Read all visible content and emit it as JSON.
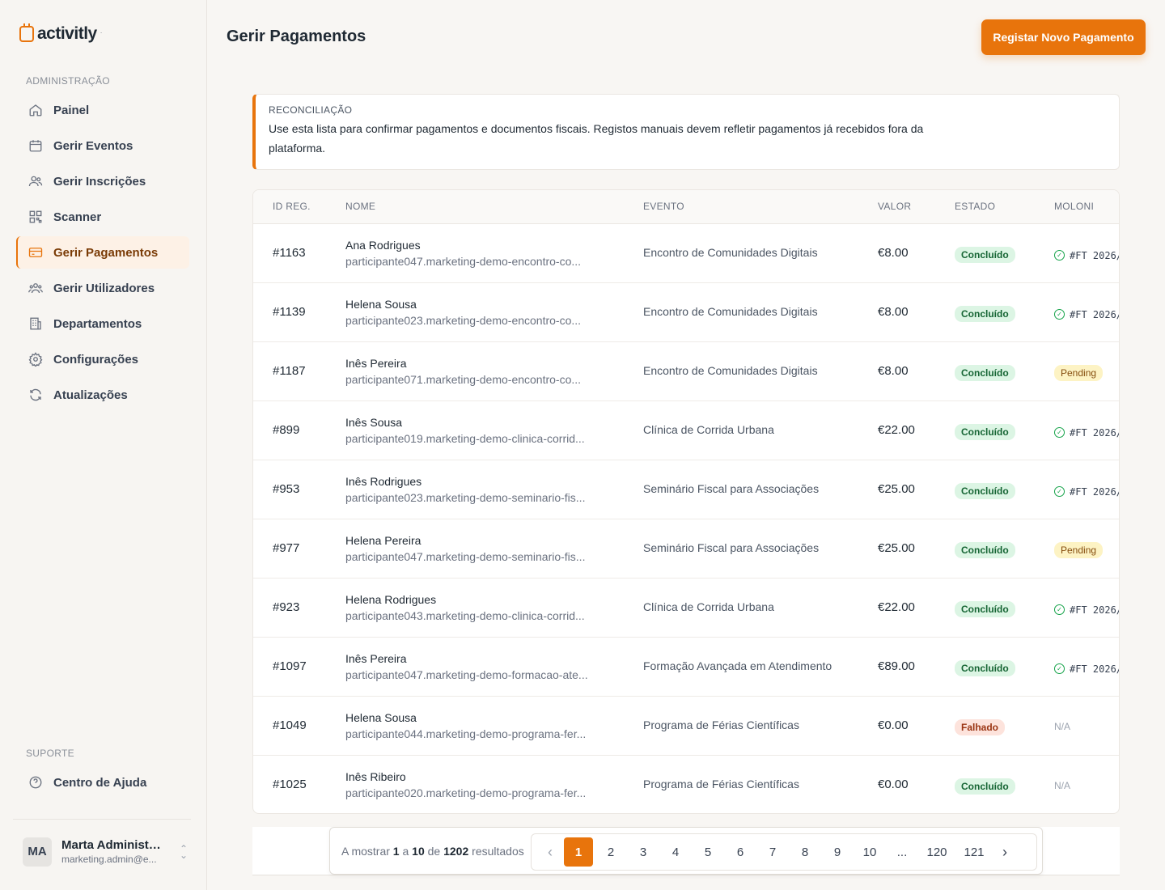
{
  "app": {
    "logo_text": "activitly",
    "logo_tm": "·"
  },
  "sidebar": {
    "section_admin": "ADMINISTRAÇÃO",
    "section_support": "SUPORTE",
    "items": [
      {
        "label": "Painel",
        "icon": "home-icon"
      },
      {
        "label": "Gerir Eventos",
        "icon": "calendar-icon"
      },
      {
        "label": "Gerir Inscrições",
        "icon": "users-icon"
      },
      {
        "label": "Scanner",
        "icon": "qr-icon"
      },
      {
        "label": "Gerir Pagamentos",
        "icon": "card-icon",
        "active": true
      },
      {
        "label": "Gerir Utilizadores",
        "icon": "user-group-icon"
      },
      {
        "label": "Departamentos",
        "icon": "building-icon"
      },
      {
        "label": "Configurações",
        "icon": "gear-icon"
      },
      {
        "label": "Atualizações",
        "icon": "refresh-icon"
      }
    ],
    "support_items": [
      {
        "label": "Centro de Ajuda",
        "icon": "help-icon"
      }
    ],
    "user": {
      "initials": "MA",
      "name": "Marta Administr...",
      "email": "marketing.admin@e..."
    }
  },
  "header": {
    "title": "Gerir Pagamentos",
    "primary_button": "Registar Novo Pagamento"
  },
  "notice": {
    "title": "RECONCILIAÇÃO",
    "text": "Use esta lista para confirmar pagamentos e documentos fiscais. Registos manuais devem refletir pagamentos já recebidos fora da plataforma."
  },
  "table": {
    "columns": [
      "ID REG.",
      "NOME",
      "EVENTO",
      "VALOR",
      "ESTADO",
      "MOLONI"
    ],
    "rows": [
      {
        "id": "#1163",
        "name": "Ana Rodrigues",
        "email": "participante047.marketing-demo-encontro-co...",
        "event": "Encontro de Comunidades Digitais",
        "value": "€8.00",
        "status": "Concluído",
        "status_kind": "ok",
        "moloni": "#FT 2026/",
        "moloni_kind": "ok"
      },
      {
        "id": "#1139",
        "name": "Helena Sousa",
        "email": "participante023.marketing-demo-encontro-co...",
        "event": "Encontro de Comunidades Digitais",
        "value": "€8.00",
        "status": "Concluído",
        "status_kind": "ok",
        "moloni": "#FT 2026/",
        "moloni_kind": "ok"
      },
      {
        "id": "#1187",
        "name": "Inês Pereira",
        "email": "participante071.marketing-demo-encontro-co...",
        "event": "Encontro de Comunidades Digitais",
        "value": "€8.00",
        "status": "Concluído",
        "status_kind": "ok",
        "moloni": "Pending",
        "moloni_kind": "pending"
      },
      {
        "id": "#899",
        "name": "Inês Sousa",
        "email": "participante019.marketing-demo-clinica-corrid...",
        "event": "Clínica de Corrida Urbana",
        "value": "€22.00",
        "status": "Concluído",
        "status_kind": "ok",
        "moloni": "#FT 2026/",
        "moloni_kind": "ok"
      },
      {
        "id": "#953",
        "name": "Inês Rodrigues",
        "email": "participante023.marketing-demo-seminario-fis...",
        "event": "Seminário Fiscal para Associações",
        "value": "€25.00",
        "status": "Concluído",
        "status_kind": "ok",
        "moloni": "#FT 2026/",
        "moloni_kind": "ok"
      },
      {
        "id": "#977",
        "name": "Helena Pereira",
        "email": "participante047.marketing-demo-seminario-fis...",
        "event": "Seminário Fiscal para Associações",
        "value": "€25.00",
        "status": "Concluído",
        "status_kind": "ok",
        "moloni": "Pending",
        "moloni_kind": "pending"
      },
      {
        "id": "#923",
        "name": "Helena Rodrigues",
        "email": "participante043.marketing-demo-clinica-corrid...",
        "event": "Clínica de Corrida Urbana",
        "value": "€22.00",
        "status": "Concluído",
        "status_kind": "ok",
        "moloni": "#FT 2026/",
        "moloni_kind": "ok"
      },
      {
        "id": "#1097",
        "name": "Inês Pereira",
        "email": "participante047.marketing-demo-formacao-ate...",
        "event": "Formação Avançada em Atendimento",
        "value": "€89.00",
        "status": "Concluído",
        "status_kind": "ok",
        "moloni": "#FT 2026/",
        "moloni_kind": "ok"
      },
      {
        "id": "#1049",
        "name": "Helena Sousa",
        "email": "participante044.marketing-demo-programa-fer...",
        "event": "Programa de Férias Científicas",
        "value": "€0.00",
        "status": "Falhado",
        "status_kind": "fail",
        "moloni": "N/A",
        "moloni_kind": "na"
      },
      {
        "id": "#1025",
        "name": "Inês Ribeiro",
        "email": "participante020.marketing-demo-programa-fer...",
        "event": "Programa de Férias Científicas",
        "value": "€0.00",
        "status": "Concluído",
        "status_kind": "ok",
        "moloni": "N/A",
        "moloni_kind": "na"
      }
    ]
  },
  "pagination": {
    "prefix": "A mostrar",
    "from": "1",
    "sep_a": "a",
    "to": "10",
    "sep_de": "de",
    "total": "1202",
    "suffix": "resultados",
    "pages": [
      "1",
      "2",
      "3",
      "4",
      "5",
      "6",
      "7",
      "8",
      "9",
      "10",
      "...",
      "120",
      "121"
    ],
    "current": "1",
    "prev_icon": "chevron-left-icon",
    "next_icon": "chevron-right-icon"
  },
  "colors": {
    "accent": "#e8740c",
    "success": "#16a34a",
    "danger": "#9a3412"
  }
}
